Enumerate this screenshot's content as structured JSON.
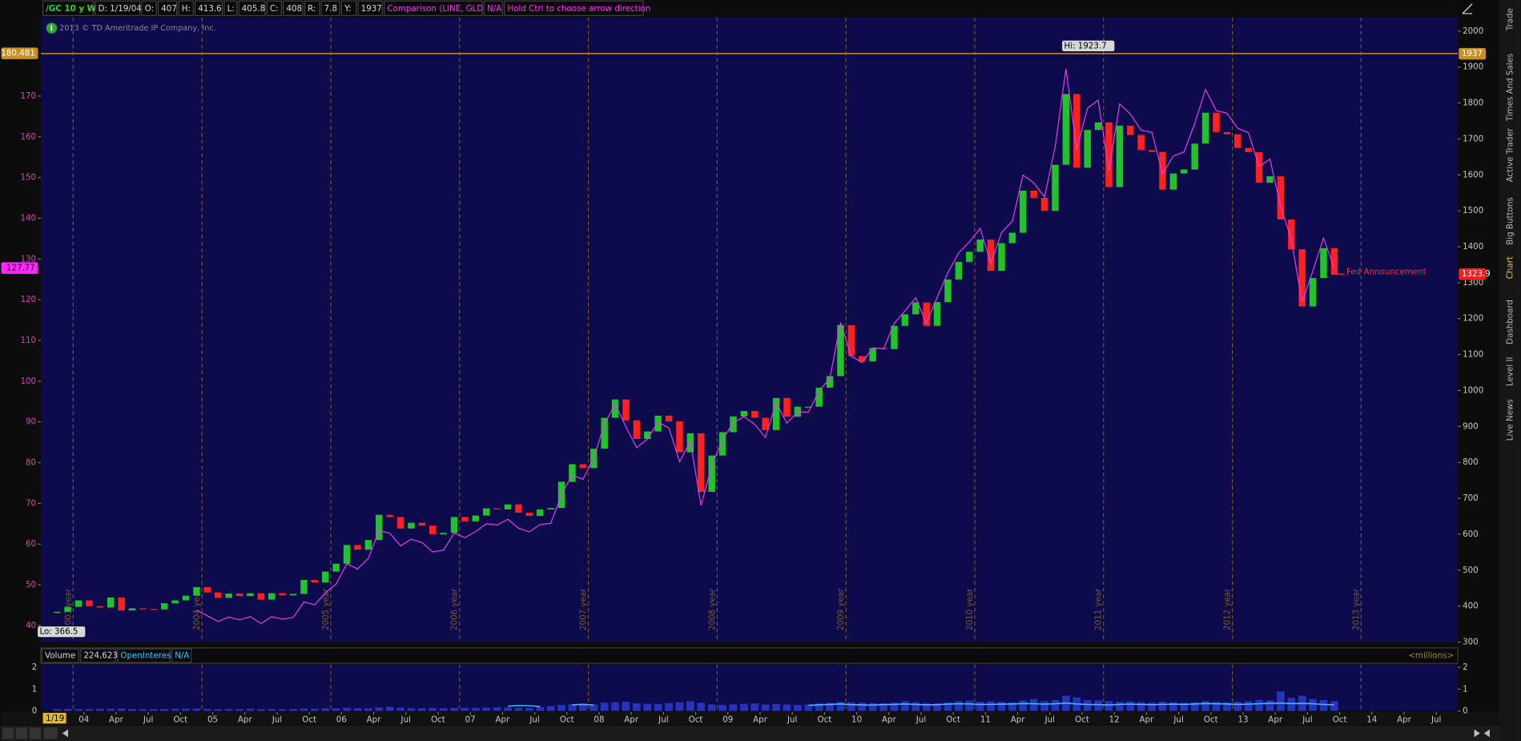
{
  "header": {
    "cells": [
      "/GC 10 y W",
      "D: 1/19/04",
      "O:",
      407,
      "H:",
      413.6,
      "L:",
      405.8,
      "C:",
      408,
      "R:",
      7.8,
      "Y:",
      1937,
      "Comparison (LINE, GLD)",
      "N/A",
      "Hold Ctrl to choose arrow direction"
    ]
  },
  "copyright": "2013 © TD Ameritrade IP Company, Inc.",
  "cursor_date": "1/19",
  "sidebar_tabs": [
    "Trade",
    "Times And Sales",
    "Active Trader",
    "Big Buttons",
    "Chart",
    "Dashboard",
    "Level II",
    "Live News"
  ],
  "chart_data": [
    {
      "type": "candlestick",
      "x": [
        "2003-10",
        "2003-11",
        "2003-12",
        "2004-01",
        "2004-02",
        "2004-03",
        "2004-04",
        "2004-05",
        "2004-06",
        "2004-07",
        "2004-08",
        "2004-09",
        "2004-10",
        "2004-11",
        "2004-12",
        "2005-01",
        "2005-02",
        "2005-03",
        "2005-04",
        "2005-05",
        "2005-06",
        "2005-07",
        "2005-08",
        "2005-09",
        "2005-10",
        "2005-11",
        "2005-12",
        "2006-01",
        "2006-02",
        "2006-03",
        "2006-04",
        "2006-05",
        "2006-06",
        "2006-07",
        "2006-08",
        "2006-09",
        "2006-10",
        "2006-11",
        "2006-12",
        "2007-01",
        "2007-02",
        "2007-03",
        "2007-04",
        "2007-05",
        "2007-06",
        "2007-07",
        "2007-08",
        "2007-09",
        "2007-10",
        "2007-11",
        "2007-12",
        "2008-01",
        "2008-02",
        "2008-03",
        "2008-04",
        "2008-05",
        "2008-06",
        "2008-07",
        "2008-08",
        "2008-09",
        "2008-10",
        "2008-11",
        "2008-12",
        "2009-01",
        "2009-02",
        "2009-03",
        "2009-04",
        "2009-05",
        "2009-06",
        "2009-07",
        "2009-08",
        "2009-09",
        "2009-10",
        "2009-11",
        "2009-12",
        "2010-01",
        "2010-02",
        "2010-03",
        "2010-04",
        "2010-05",
        "2010-06",
        "2010-07",
        "2010-08",
        "2010-09",
        "2010-10",
        "2010-11",
        "2010-12",
        "2011-01",
        "2011-02",
        "2011-03",
        "2011-04",
        "2011-05",
        "2011-06",
        "2011-07",
        "2011-08",
        "2011-09",
        "2011-10",
        "2011-11",
        "2011-12",
        "2012-01",
        "2012-02",
        "2012-03",
        "2012-04",
        "2012-05",
        "2012-06",
        "2012-07",
        "2012-08",
        "2012-09",
        "2012-10",
        "2012-11",
        "2012-12",
        "2013-01",
        "2013-02",
        "2013-03",
        "2013-04",
        "2013-05",
        "2013-06",
        "2013-07",
        "2013-08",
        "2013-09"
      ],
      "series": [
        {
          "name": "/GC",
          "color_up": "#1fc42a",
          "color_down": "#ff2020",
          "values": [
            384,
            398,
            416,
            400,
            396,
            424,
            388,
            394,
            392,
            391,
            408,
            416,
            429,
            453,
            438,
            423,
            435,
            428,
            436,
            418,
            436,
            430,
            434,
            473,
            466,
            496,
            518,
            570,
            557,
            584,
            654,
            648,
            616,
            632,
            624,
            600,
            604,
            648,
            636,
            652,
            672,
            669,
            683,
            660,
            651,
            669,
            673,
            746,
            795,
            784,
            838,
            924,
            975,
            917,
            865,
            886,
            930,
            914,
            828,
            881,
            718,
            819,
            884,
            928,
            943,
            924,
            890,
            979,
            927,
            955,
            955,
            1008,
            1040,
            1182,
            1096,
            1081,
            1118,
            1115,
            1180,
            1212,
            1245,
            1180,
            1246,
            1309,
            1358,
            1386,
            1420,
            1333,
            1410,
            1439,
            1556,
            1536,
            1500,
            1628,
            1825,
            1620,
            1725,
            1746,
            1566,
            1737,
            1711,
            1669,
            1664,
            1559,
            1604,
            1615,
            1687,
            1773,
            1719,
            1713,
            1675,
            1663,
            1578,
            1596,
            1476,
            1393,
            1234,
            1313,
            1396,
            1323.9
          ]
        },
        {
          "name": "GLD",
          "type": "line",
          "axis": "y2",
          "color": "#e43ce8",
          "values": [
            null,
            null,
            null,
            null,
            null,
            null,
            null,
            null,
            null,
            null,
            null,
            null,
            null,
            43.8,
            42.4,
            41.0,
            42.1,
            41.4,
            42.2,
            40.5,
            42.2,
            41.6,
            42.0,
            45.8,
            45.1,
            48.0,
            50.2,
            55.2,
            53.9,
            56.5,
            63.3,
            62.7,
            59.6,
            61.2,
            60.4,
            58.1,
            58.5,
            62.7,
            61.6,
            63.1,
            65.0,
            64.7,
            66.1,
            63.9,
            63.0,
            64.8,
            65.1,
            72.2,
            77.0,
            75.9,
            81.1,
            89.4,
            94.4,
            88.8,
            83.7,
            85.8,
            90.0,
            88.5,
            80.2,
            85.3,
            69.5,
            79.3,
            85.6,
            89.8,
            91.3,
            89.4,
            86.2,
            94.8,
            89.7,
            92.4,
            92.4,
            97.6,
            100.7,
            114.4,
            106.1,
            104.6,
            108.2,
            107.9,
            114.2,
            117.3,
            120.5,
            114.2,
            120.6,
            126.7,
            131.5,
            134.2,
            137.5,
            129.0,
            136.5,
            139.3,
            150.6,
            148.7,
            145.2,
            157.6,
            176.7,
            156.8,
            167.0,
            169.0,
            151.6,
            168.1,
            165.6,
            161.6,
            161.1,
            150.9,
            155.3,
            156.3,
            163.3,
            171.6,
            166.4,
            165.8,
            162.1,
            161.0,
            152.7,
            154.5,
            142.9,
            134.8,
            119.4,
            127.1,
            135.1,
            127.77
          ]
        }
      ],
      "ylim": [
        300,
        2038
      ],
      "yticks": [
        300,
        400,
        500,
        600,
        700,
        800,
        900,
        1000,
        1100,
        1200,
        1300,
        1400,
        1500,
        1600,
        1700,
        1800,
        1900,
        2000
      ],
      "y2lim": [
        35.95,
        189.3
      ],
      "y2ticks": [
        40,
        50,
        60,
        70,
        80,
        90,
        100,
        110,
        120,
        130,
        140,
        150,
        160,
        170
      ],
      "xlim": [
        "2003-09",
        "2014-09"
      ],
      "xticks": [
        {
          "value": "2004-01",
          "label": "04"
        },
        {
          "value": "2004-04",
          "label": "Apr"
        },
        {
          "value": "2004-07",
          "label": "Jul"
        },
        {
          "value": "2004-10",
          "label": "Oct"
        },
        {
          "value": "2005-01",
          "label": "05"
        },
        {
          "value": "2005-04",
          "label": "Apr"
        },
        {
          "value": "2005-07",
          "label": "Jul"
        },
        {
          "value": "2005-10",
          "label": "Oct"
        },
        {
          "value": "2006-01",
          "label": "06"
        },
        {
          "value": "2006-04",
          "label": "Apr"
        },
        {
          "value": "2006-07",
          "label": "Jul"
        },
        {
          "value": "2006-10",
          "label": "Oct"
        },
        {
          "value": "2007-01",
          "label": "07"
        },
        {
          "value": "2007-04",
          "label": "Apr"
        },
        {
          "value": "2007-07",
          "label": "Jul"
        },
        {
          "value": "2007-10",
          "label": "Oct"
        },
        {
          "value": "2008-01",
          "label": "08"
        },
        {
          "value": "2008-04",
          "label": "Apr"
        },
        {
          "value": "2008-07",
          "label": "Jul"
        },
        {
          "value": "2008-10",
          "label": "Oct"
        },
        {
          "value": "2009-01",
          "label": "09"
        },
        {
          "value": "2009-04",
          "label": "Apr"
        },
        {
          "value": "2009-07",
          "label": "Jul"
        },
        {
          "value": "2009-10",
          "label": "Oct"
        },
        {
          "value": "2010-01",
          "label": "10"
        },
        {
          "value": "2010-04",
          "label": "Apr"
        },
        {
          "value": "2010-07",
          "label": "Jul"
        },
        {
          "value": "2010-10",
          "label": "Oct"
        },
        {
          "value": "2011-01",
          "label": "11"
        },
        {
          "value": "2011-04",
          "label": "Apr"
        },
        {
          "value": "2011-07",
          "label": "Jul"
        },
        {
          "value": "2011-10",
          "label": "Oct"
        },
        {
          "value": "2012-01",
          "label": "12"
        },
        {
          "value": "2012-04",
          "label": "Apr"
        },
        {
          "value": "2012-07",
          "label": "Jul"
        },
        {
          "value": "2012-10",
          "label": "Oct"
        },
        {
          "value": "2013-01",
          "label": "13"
        },
        {
          "value": "2013-04",
          "label": "Apr"
        },
        {
          "value": "2013-07",
          "label": "Jul"
        },
        {
          "value": "2013-10",
          "label": "Oct"
        },
        {
          "value": "2014-01",
          "label": "14"
        },
        {
          "value": "2014-04",
          "label": "Apr"
        },
        {
          "value": "2014-07",
          "label": "Jul"
        }
      ],
      "year_markers": [
        {
          "value": "2003-12",
          "label": "2003 year"
        },
        {
          "value": "2004-12",
          "label": "2004 year"
        },
        {
          "value": "2005-12",
          "label": "2005 year"
        },
        {
          "value": "2006-12",
          "label": "2006 year"
        },
        {
          "value": "2007-12",
          "label": "2007 year"
        },
        {
          "value": "2008-12",
          "label": "2008 year"
        },
        {
          "value": "2009-12",
          "label": "2009 year"
        },
        {
          "value": "2010-12",
          "label": "2010 year"
        },
        {
          "value": "2011-12",
          "label": "2011 year"
        },
        {
          "value": "2012-12",
          "label": "2012 year"
        },
        {
          "value": "2013-12",
          "label": "2013 year"
        }
      ],
      "annotations": [
        {
          "label": "Hi: 1923.7",
          "x": "2011-08",
          "value": 1923.7
        },
        {
          "label": "Lo: 366.5",
          "x": "2003-10",
          "value": 366.5
        }
      ],
      "event": "Fed Announcement",
      "price_markers": [
        {
          "value": {
            "value": 180.481,
            "label": "180.481"
          },
          "axis": "y2",
          "color": "#c8901e"
        },
        {
          "value": 1937,
          "axis": "y",
          "color": "#c8901e"
        },
        {
          "value": 127.77,
          "axis": "y2",
          "color": "#ff28ff"
        },
        {
          "value": 1323.9,
          "axis": "y",
          "color": "#ff1a1a"
        }
      ]
    },
    {
      "type": "bar",
      "title": "Volume",
      "readout": {
        "value": 224623,
        "label": "224,623"
      },
      "extra": [
        "OpenInterest",
        "N/A"
      ],
      "unit": "<millions>",
      "ylim": [
        0,
        2.14
      ],
      "yticks": [
        0,
        1,
        2
      ],
      "series": [
        {
          "name": "Volume",
          "color": "#2b3bd0",
          "values": [
            0.08,
            0.09,
            0.08,
            0.09,
            0.1,
            0.1,
            0.11,
            0.09,
            0.08,
            0.08,
            0.09,
            0.1,
            0.1,
            0.11,
            0.09,
            0.08,
            0.09,
            0.09,
            0.1,
            0.08,
            0.09,
            0.08,
            0.09,
            0.11,
            0.1,
            0.12,
            0.12,
            0.14,
            0.13,
            0.12,
            0.16,
            0.18,
            0.15,
            0.12,
            0.12,
            0.13,
            0.12,
            0.14,
            0.13,
            0.14,
            0.15,
            0.17,
            0.16,
            0.15,
            0.14,
            0.18,
            0.22,
            0.28,
            0.31,
            0.34,
            0.3,
            0.38,
            0.4,
            0.42,
            0.35,
            0.33,
            0.32,
            0.36,
            0.4,
            0.45,
            0.38,
            0.3,
            0.28,
            0.3,
            0.33,
            0.34,
            0.3,
            0.32,
            0.3,
            0.28,
            0.3,
            0.36,
            0.38,
            0.42,
            0.4,
            0.38,
            0.36,
            0.35,
            0.38,
            0.45,
            0.4,
            0.36,
            0.35,
            0.4,
            0.45,
            0.48,
            0.42,
            0.44,
            0.42,
            0.4,
            0.48,
            0.55,
            0.45,
            0.5,
            0.7,
            0.62,
            0.5,
            0.48,
            0.45,
            0.42,
            0.44,
            0.4,
            0.38,
            0.42,
            0.4,
            0.38,
            0.4,
            0.45,
            0.42,
            0.4,
            0.42,
            0.45,
            0.5,
            0.48,
            0.9,
            0.6,
            0.7,
            0.55,
            0.5,
            0.45
          ]
        },
        {
          "name": "OpenInterest",
          "type": "line",
          "color": "#35c8ff",
          "values": [
            null,
            null,
            null,
            null,
            null,
            null,
            null,
            null,
            null,
            null,
            null,
            null,
            null,
            null,
            null,
            null,
            null,
            null,
            null,
            null,
            null,
            null,
            null,
            null,
            null,
            null,
            null,
            null,
            null,
            null,
            null,
            null,
            null,
            null,
            null,
            null,
            null,
            null,
            null,
            null,
            null,
            null,
            0.22,
            0.25,
            0.24,
            0.2,
            null,
            null,
            0.28,
            0.3,
            0.27,
            null,
            null,
            null,
            null,
            null,
            null,
            null,
            null,
            null,
            null,
            null,
            null,
            null,
            null,
            null,
            null,
            null,
            null,
            null,
            0.26,
            0.28,
            0.3,
            0.32,
            0.29,
            0.28,
            0.27,
            0.29,
            0.3,
            0.32,
            0.3,
            0.28,
            0.29,
            0.31,
            0.33,
            0.32,
            0.3,
            0.3,
            0.31,
            0.32,
            0.34,
            0.33,
            0.31,
            0.33,
            0.36,
            0.32,
            0.3,
            0.29,
            0.28,
            0.3,
            0.31,
            0.3,
            0.29,
            0.3,
            0.31,
            0.3,
            0.32,
            0.34,
            0.33,
            0.32,
            0.3,
            0.31,
            0.33,
            0.35,
            0.36,
            0.34,
            0.35,
            0.33,
            0.3,
            0.28
          ]
        }
      ]
    }
  ]
}
